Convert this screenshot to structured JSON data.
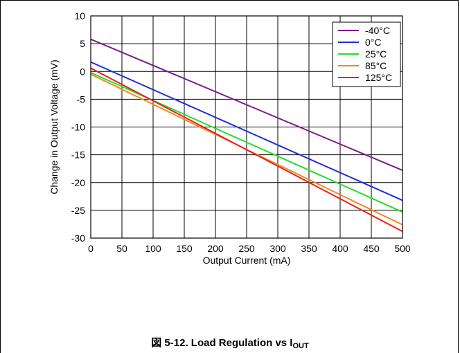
{
  "chart_data": {
    "type": "line",
    "xlabel": "Output Current (mA)",
    "ylabel": "Change in Output Voltage (mV)",
    "xlim": [
      0,
      500
    ],
    "ylim": [
      -30,
      10
    ],
    "xticks": [
      0,
      50,
      100,
      150,
      200,
      250,
      300,
      350,
      400,
      450,
      500
    ],
    "yticks": [
      10,
      5,
      0,
      -5,
      -10,
      -15,
      -20,
      -25,
      -30
    ],
    "grid": true,
    "legend_position": "top-right",
    "series": [
      {
        "name": "-40°C",
        "color": "#7a1f8a",
        "x": [
          0,
          500
        ],
        "y": [
          5.8,
          -17.8
        ]
      },
      {
        "name": "0°C",
        "color": "#1f2fd6",
        "x": [
          0,
          500
        ],
        "y": [
          1.7,
          -23.2
        ]
      },
      {
        "name": "25°C",
        "color": "#22e02a",
        "x": [
          0,
          500
        ],
        "y": [
          -0.2,
          -25.3
        ]
      },
      {
        "name": "85°C",
        "color": "#f08a1e",
        "x": [
          0,
          500
        ],
        "y": [
          -0.5,
          -27.6
        ]
      },
      {
        "name": "125°C",
        "color": "#e8201e",
        "x": [
          0,
          500
        ],
        "y": [
          0.6,
          -28.8
        ]
      }
    ]
  },
  "caption": {
    "prefix": "図 5-12. Load Regulation vs I",
    "subscript": "OUT"
  }
}
